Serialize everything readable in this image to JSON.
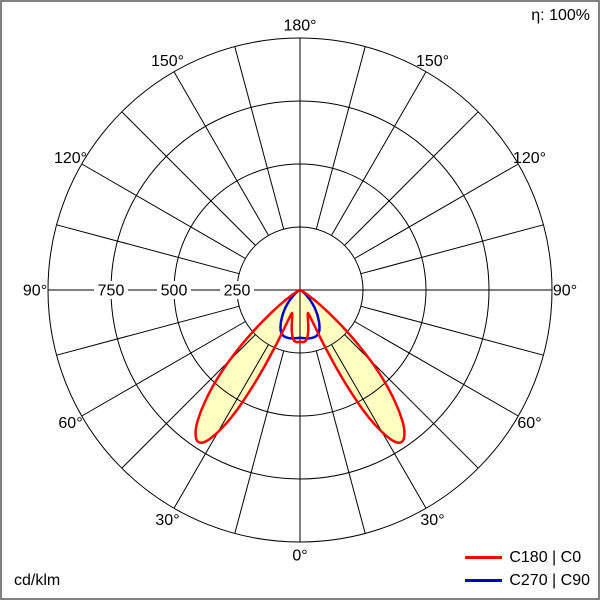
{
  "header": {
    "efficiency_label": "η: 100%"
  },
  "footer": {
    "unit_label": "cd/klm"
  },
  "legend": {
    "items": [
      {
        "label": "C180 | C0",
        "color": "#ff0000"
      },
      {
        "label": "C270 | C90",
        "color": "#0000cc"
      }
    ]
  },
  "chart_data": {
    "type": "polar",
    "unit": "cd/klm",
    "rmax": 1000,
    "orientation_zero_deg": "down",
    "grid": {
      "color": "#000000",
      "spoke_step_deg": 15,
      "radial_ticks": [
        250,
        500,
        750,
        1000
      ],
      "tick_labels": [
        {
          "value": 250,
          "text": "250"
        },
        {
          "value": 500,
          "text": "500"
        },
        {
          "value": 750,
          "text": "750"
        }
      ]
    },
    "angle_labels": [
      {
        "deg": 0,
        "text": "0°"
      },
      {
        "deg": 30,
        "text": "30°"
      },
      {
        "deg": 60,
        "text": "60°"
      },
      {
        "deg": 90,
        "text": "90°"
      },
      {
        "deg": 120,
        "text": "120°"
      },
      {
        "deg": 150,
        "text": "150°"
      },
      {
        "deg": 180,
        "text": "180°"
      }
    ],
    "series": [
      {
        "name": "C180 | C0",
        "color": "#ff0000",
        "fill": "#ffffc2",
        "symmetric": true,
        "gamma": [
          0,
          4,
          8,
          12,
          15,
          18,
          20,
          22,
          24,
          26,
          28,
          30,
          32,
          34,
          36,
          38,
          41,
          44,
          47,
          50,
          53,
          56,
          59,
          62,
          66,
          70,
          76,
          83,
          90
        ],
        "values": [
          205,
          207,
          196,
          158,
          122,
          100,
          103,
          150,
          265,
          415,
          555,
          650,
          710,
          725,
          705,
          660,
          560,
          440,
          310,
          195,
          112,
          58,
          28,
          13,
          6,
          3,
          1,
          0.5,
          0
        ]
      },
      {
        "name": "C270 | C90",
        "color": "#0000cc",
        "fill": null,
        "symmetric": true,
        "gamma": [
          0,
          5,
          10,
          15,
          20,
          25,
          30,
          35,
          40,
          45,
          50,
          55,
          60,
          70,
          80,
          90
        ],
        "values": [
          190,
          192,
          195,
          196,
          193,
          180,
          152,
          120,
          88,
          58,
          34,
          19,
          11,
          5,
          2,
          0
        ]
      }
    ]
  }
}
